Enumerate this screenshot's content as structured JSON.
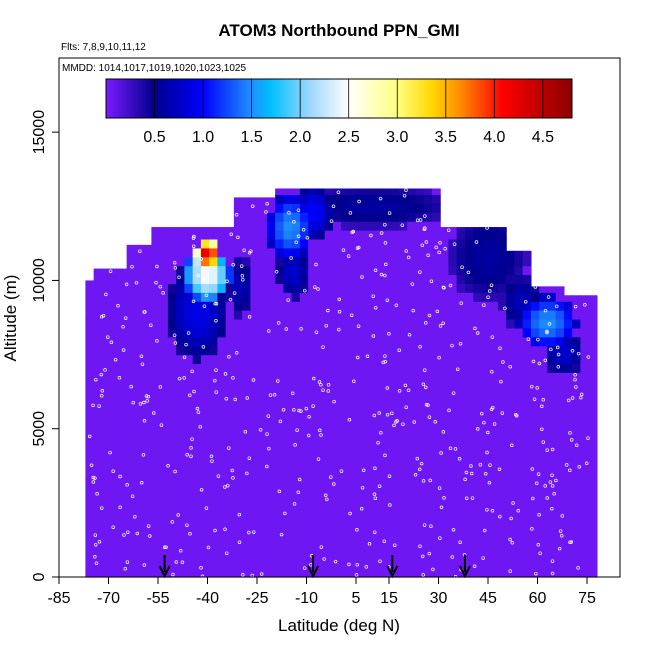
{
  "chart_data": {
    "type": "heatmap",
    "title": "ATOM3 Northbound PPN_GMI",
    "subtitle_flights": "Flts: 7,8,9,10,11,12",
    "subtitle_dates": "MMDD: 1014,1017,1019,1020,1023,1025",
    "xlabel": "Latitude (deg N)",
    "ylabel": "Altitude (m)",
    "xlim": [
      -85,
      85
    ],
    "ylim": [
      0,
      17500
    ],
    "x_ticks": [
      -85,
      -70,
      -55,
      -40,
      -25,
      -10,
      5,
      15,
      30,
      45,
      60,
      75
    ],
    "y_ticks": [
      0,
      5000,
      10000,
      15000
    ],
    "colorbar": {
      "range": [
        0,
        4.8
      ],
      "ticks": [
        0.5,
        1.0,
        1.5,
        2.0,
        2.5,
        3.0,
        3.5,
        4.0,
        4.5
      ],
      "tick_labels": [
        "0.5",
        "1.0",
        "1.5",
        "2.0",
        "2.5",
        "3.0",
        "3.5",
        "4.0",
        "4.5"
      ]
    },
    "flight_arrow_latitudes": [
      -53,
      -8,
      16,
      38
    ],
    "curtain_ceiling": [
      {
        "lat_from": -85,
        "lat_to": -75,
        "ceiling": 10000
      },
      {
        "lat_from": -75,
        "lat_to": -65,
        "ceiling": 10400
      },
      {
        "lat_from": -65,
        "lat_to": -56,
        "ceiling": 11200
      },
      {
        "lat_from": -56,
        "lat_to": -33,
        "ceiling": 11800
      },
      {
        "lat_from": -33,
        "lat_to": -20,
        "ceiling": 12800
      },
      {
        "lat_from": -20,
        "lat_to": 30,
        "ceiling": 13100
      },
      {
        "lat_from": 30,
        "lat_to": 50,
        "ceiling": 11800
      },
      {
        "lat_from": 50,
        "lat_to": 58,
        "ceiling": 11000
      },
      {
        "lat_from": 58,
        "lat_to": 67,
        "ceiling": 9800
      },
      {
        "lat_from": 67,
        "lat_to": 77,
        "ceiling": 9500
      }
    ],
    "background_value": 0.05,
    "features": [
      {
        "lat_center": -40,
        "alt_center": 10900,
        "lat_halfwidth": 4,
        "alt_halfwidth": 550,
        "value": 4.3
      },
      {
        "lat_center": -40,
        "alt_center": 10200,
        "lat_halfwidth": 7,
        "alt_halfwidth": 900,
        "value": 2.5
      },
      {
        "lat_center": -43,
        "alt_center": 9000,
        "lat_halfwidth": 9,
        "alt_halfwidth": 1700,
        "value": 0.9
      },
      {
        "lat_center": -30,
        "alt_center": 9800,
        "lat_halfwidth": 4,
        "alt_halfwidth": 1000,
        "value": 0.7
      },
      {
        "lat_center": -15,
        "alt_center": 11800,
        "lat_halfwidth": 7,
        "alt_halfwidth": 1100,
        "value": 1.5
      },
      {
        "lat_center": -14,
        "alt_center": 10300,
        "lat_halfwidth": 5,
        "alt_halfwidth": 900,
        "value": 0.8
      },
      {
        "lat_center": -8,
        "alt_center": 12300,
        "lat_halfwidth": 6,
        "alt_halfwidth": 900,
        "value": 1.0
      },
      {
        "lat_center": 10,
        "alt_center": 12500,
        "lat_halfwidth": 25,
        "alt_halfwidth": 700,
        "value": 0.6
      },
      {
        "lat_center": 45,
        "alt_center": 10800,
        "lat_halfwidth": 12,
        "alt_halfwidth": 1500,
        "value": 0.6
      },
      {
        "lat_center": 63,
        "alt_center": 8600,
        "lat_halfwidth": 9,
        "alt_halfwidth": 900,
        "value": 1.5
      },
      {
        "lat_center": 68,
        "alt_center": 7600,
        "lat_halfwidth": 6,
        "alt_halfwidth": 800,
        "value": 0.8
      },
      {
        "lat_center": 55,
        "alt_center": 9300,
        "lat_halfwidth": 6,
        "alt_halfwidth": 900,
        "value": 0.7
      }
    ]
  }
}
